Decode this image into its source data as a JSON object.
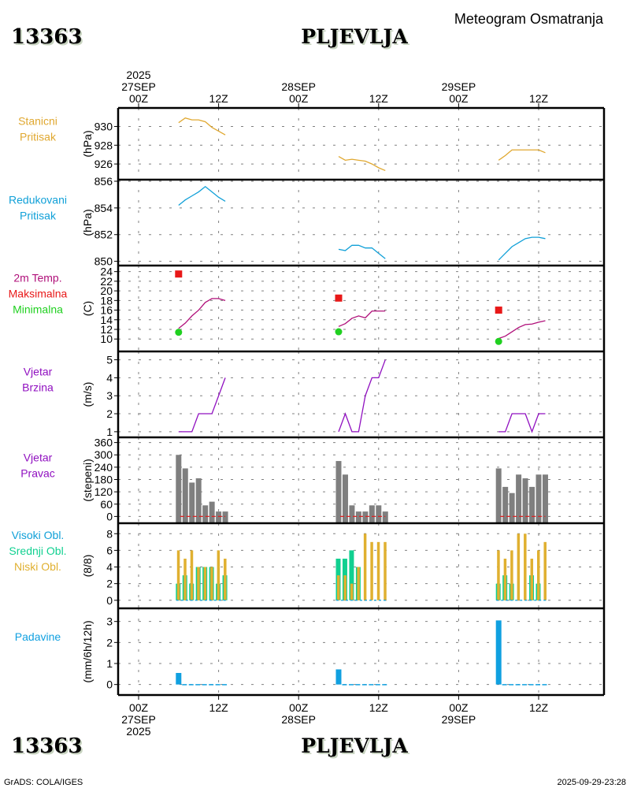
{
  "header": {
    "station_id": "13363",
    "station_name": "PLJEVLJA",
    "product_title": "Meteogram Osmatranja"
  },
  "footer": {
    "station_id": "13363",
    "station_name": "PLJEVLJA",
    "credit": "GrADS: COLA/IGES",
    "timestamp": "2025-09-29-23:28"
  },
  "colors": {
    "station_pressure": "#e0a830",
    "reduced_pressure": "#10a0d8",
    "temperature": "#b0107a",
    "tmax": "#e81818",
    "tmin": "#20d020",
    "wind_speed": "#9010c0",
    "wind_dir": "#7f7f7f",
    "wind_dir_base": "#e02020",
    "cloud_high": "#10a0d8",
    "cloud_mid": "#10d090",
    "cloud_low": "#e0b030",
    "precip": "#10a0e0"
  },
  "chart_data": {
    "type": "line",
    "title": "Meteogram Osmatranja",
    "time_axis": {
      "start": "2025-09-27T00Z",
      "end": "2025-09-29T21Z",
      "top_labels": [
        {
          "hour": 0,
          "lines": [
            "2025",
            "27SEP",
            "00Z"
          ]
        },
        {
          "hour": 12,
          "lines": [
            "12Z"
          ]
        },
        {
          "hour": 24,
          "lines": [
            "28SEP",
            "00Z"
          ]
        },
        {
          "hour": 36,
          "lines": [
            "12Z"
          ]
        },
        {
          "hour": 48,
          "lines": [
            "29SEP",
            "00Z"
          ]
        },
        {
          "hour": 60,
          "lines": [
            "12Z"
          ]
        }
      ],
      "bottom_labels": [
        {
          "hour": 0,
          "lines": [
            "00Z",
            "27SEP",
            "2025"
          ]
        },
        {
          "hour": 12,
          "lines": [
            "12Z"
          ]
        },
        {
          "hour": 24,
          "lines": [
            "00Z",
            "28SEP"
          ]
        },
        {
          "hour": 36,
          "lines": [
            "12Z"
          ]
        },
        {
          "hour": 48,
          "lines": [
            "00Z",
            "29SEP"
          ]
        },
        {
          "hour": 60,
          "lines": [
            "12Z"
          ]
        }
      ]
    },
    "hours": [
      [
        6,
        7,
        8,
        9,
        10,
        11,
        12,
        13
      ],
      [
        30,
        31,
        32,
        33,
        34,
        35,
        36,
        37
      ],
      [
        54,
        55,
        56,
        57,
        58,
        59,
        60,
        61
      ]
    ],
    "panels": [
      {
        "id": "station_pressure",
        "labels": [
          "Stanicni",
          "Pritisak"
        ],
        "label_colors": [
          "station_pressure",
          "station_pressure"
        ],
        "unit": "(hPa)",
        "ylim": [
          925.0,
          931.3
        ],
        "yticks": [
          926,
          928,
          930
        ],
        "type": "line",
        "series": [
          {
            "name": "Stanicni Pritisak",
            "color": "station_pressure",
            "values": [
              [
                930.4,
                930.9,
                930.7,
                930.7,
                930.5,
                929.9,
                929.5,
                929.1
              ],
              [
                926.8,
                926.4,
                926.5,
                926.4,
                926.3,
                926.0,
                925.6,
                925.3
              ],
              [
                926.4,
                926.9,
                927.5,
                927.5,
                927.5,
                927.5,
                927.5,
                927.2
              ]
            ]
          }
        ]
      },
      {
        "id": "reduced_pressure",
        "labels": [
          "Redukovani",
          "Pritisak"
        ],
        "label_colors": [
          "reduced_pressure",
          "reduced_pressure"
        ],
        "unit": "(hPa)",
        "ylim": [
          849.8,
          856.0
        ],
        "yticks": [
          850,
          852,
          854,
          856
        ],
        "type": "line",
        "series": [
          {
            "name": "Redukovani Pritisak",
            "color": "reduced_pressure",
            "values": [
              [
                854.2,
                854.6,
                854.9,
                855.2,
                855.6,
                855.2,
                854.8,
                854.5
              ],
              [
                850.9,
                850.8,
                851.2,
                851.2,
                851.0,
                851.0,
                850.6,
                850.2
              ],
              [
                850.1,
                850.6,
                851.1,
                851.4,
                851.7,
                851.8,
                851.8,
                851.7
              ]
            ]
          }
        ]
      },
      {
        "id": "temperature",
        "labels": [
          "2m Temp.",
          "Maksimalna",
          "Minimalna"
        ],
        "label_colors": [
          "temperature",
          "tmax",
          "tmin"
        ],
        "unit": "(C)",
        "ylim": [
          8.4,
          24.6
        ],
        "yticks": [
          10,
          12,
          14,
          16,
          18,
          20,
          22,
          24
        ],
        "type": "line",
        "series": [
          {
            "name": "2m Temp.",
            "color": "temperature",
            "values": [
              [
                12.2,
                13.3,
                14.8,
                16.0,
                17.6,
                18.4,
                18.4,
                18.0
              ],
              [
                12.6,
                13.2,
                14.3,
                14.8,
                14.4,
                15.8,
                15.8,
                15.8
              ],
              [
                10.1,
                10.6,
                11.5,
                12.4,
                13.0,
                13.1,
                13.5,
                13.8
              ]
            ]
          }
        ],
        "tmax": [
          {
            "hour": 6,
            "value": 23.5
          },
          {
            "hour": 30,
            "value": 18.5
          },
          {
            "hour": 54,
            "value": 16.0
          }
        ],
        "tmin": [
          {
            "hour": 6,
            "value": 11.4
          },
          {
            "hour": 30,
            "value": 11.5
          },
          {
            "hour": 54,
            "value": 9.5
          }
        ]
      },
      {
        "id": "wind_speed",
        "labels": [
          "Vjetar",
          "Brzina"
        ],
        "label_colors": [
          "wind_speed",
          "wind_speed"
        ],
        "unit": "(m/s)",
        "ylim": [
          0.95,
          5.2
        ],
        "yticks": [
          1,
          2,
          3,
          4,
          5
        ],
        "type": "line",
        "series": [
          {
            "name": "Vjetar Brzina",
            "color": "wind_speed",
            "values": [
              [
                1,
                1,
                1,
                2,
                2,
                2,
                3,
                4
              ],
              [
                1,
                2,
                1,
                1,
                3,
                4,
                4,
                5
              ],
              [
                1,
                1,
                2,
                2,
                2,
                1,
                2,
                2
              ]
            ]
          }
        ]
      },
      {
        "id": "wind_direction",
        "labels": [
          "Vjetar",
          "Pravac"
        ],
        "label_colors": [
          "wind_speed",
          "wind_speed"
        ],
        "unit": "(stepeni)",
        "ylim": [
          -10,
          370
        ],
        "yticks": [
          0,
          60,
          120,
          180,
          240,
          300,
          360
        ],
        "type": "bar",
        "series": [
          {
            "name": "Vjetar Pravac",
            "color": "wind_dir",
            "values": [
              [
                300,
                234,
                165,
                186,
                54,
                72,
                24,
                24
              ],
              [
                270,
                204,
                54,
                24,
                24,
                54,
                54,
                24
              ],
              [
                234,
                144,
                114,
                204,
                186,
                144,
                204,
                204
              ]
            ]
          }
        ]
      },
      {
        "id": "clouds",
        "labels": [
          "Visoki Obl.",
          "Srednji Obl.",
          "Niski Obl."
        ],
        "label_colors": [
          "cloud_high",
          "cloud_mid",
          "cloud_low"
        ],
        "unit": "(8/8)",
        "ylim": [
          -0.4,
          8.5
        ],
        "yticks": [
          0,
          2,
          4,
          6,
          8
        ],
        "type": "bar",
        "series": [
          {
            "name": "Visoki Obl.",
            "color": "cloud_high",
            "values": [
              [
                0,
                0,
                0,
                0,
                0,
                0,
                0,
                0
              ],
              [
                0,
                0,
                0,
                0,
                0,
                0,
                0,
                0
              ],
              [
                0,
                0,
                0,
                0,
                0,
                0,
                0,
                0
              ]
            ]
          },
          {
            "name": "Srednji Obl.",
            "color": "cloud_mid",
            "values": [
              [
                2,
                3,
                2,
                4,
                4,
                4,
                2,
                3
              ],
              [
                5,
                5,
                6,
                4,
                0,
                0,
                0,
                0
              ],
              [
                2,
                3,
                2,
                0,
                0,
                3,
                2,
                0
              ]
            ]
          },
          {
            "name": "Niski Obl.",
            "color": "cloud_low",
            "values": [
              [
                6,
                5,
                6,
                4,
                4,
                4,
                6,
                5
              ],
              [
                3,
                3,
                2,
                4,
                8,
                7,
                7,
                7
              ],
              [
                6,
                5,
                6,
                8,
                8,
                5,
                6,
                7
              ]
            ]
          }
        ]
      },
      {
        "id": "precipitation",
        "labels": [
          "Padavine"
        ],
        "label_colors": [
          "precip"
        ],
        "unit": "(mm/6h/12h)",
        "ylim": [
          -0.2,
          3.25
        ],
        "yticks": [
          0,
          1,
          2,
          3
        ],
        "type": "bar",
        "series": [
          {
            "name": "Padavine",
            "color": "precip",
            "values": [
              [
                0.55,
                0.02,
                0.02,
                0.02,
                0.02,
                0.02,
                0.02,
                0.02
              ],
              [
                0.72,
                0.02,
                0.02,
                0.02,
                0.02,
                0.02,
                0.02,
                0.02
              ],
              [
                3.05,
                0.02,
                0.02,
                0.02,
                0.02,
                0.02,
                0.02,
                0.02
              ]
            ]
          }
        ]
      }
    ]
  }
}
